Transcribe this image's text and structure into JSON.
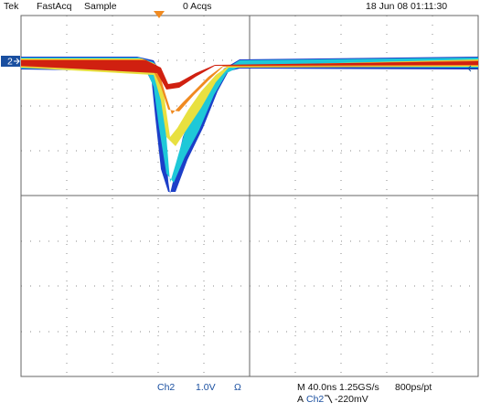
{
  "header": {
    "brand": "Tek",
    "mode": "FastAcq",
    "acq_mode": "Sample",
    "acquisitions": "0 Acqs",
    "datetime": "18 Jun 08 01:11:30"
  },
  "channel_marker": "2",
  "footer": {
    "channel": "Ch2",
    "scale": "1.0V",
    "coupling": "Ω",
    "timebase": "M 40.0ns",
    "sample_rate": "1.25GS/s",
    "resolution": "800ps/pt",
    "trigger_label": "A",
    "trigger_source": "Ch2",
    "trigger_level": "-220mV"
  }
}
